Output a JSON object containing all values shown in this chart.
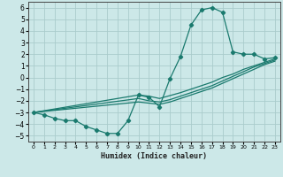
{
  "xlabel": "Humidex (Indice chaleur)",
  "ylabel": "",
  "bg_color": "#cce8e8",
  "grid_color": "#aacccc",
  "line_color": "#1a7a6e",
  "xlim": [
    -0.5,
    23.5
  ],
  "ylim": [
    -5.5,
    6.5
  ],
  "xticks": [
    0,
    1,
    2,
    3,
    4,
    5,
    6,
    7,
    8,
    9,
    10,
    11,
    12,
    13,
    14,
    15,
    16,
    17,
    18,
    19,
    20,
    21,
    22,
    23
  ],
  "yticks": [
    -5,
    -4,
    -3,
    -2,
    -1,
    0,
    1,
    2,
    3,
    4,
    5,
    6
  ],
  "line1_x": [
    0,
    1,
    2,
    3,
    4,
    5,
    6,
    7,
    8,
    9,
    10,
    11,
    12,
    13,
    14,
    15,
    16,
    17,
    18,
    19,
    20,
    21,
    22,
    23
  ],
  "line1_y": [
    -3.0,
    -3.2,
    -3.5,
    -3.7,
    -3.7,
    -4.2,
    -4.5,
    -4.8,
    -4.8,
    -3.7,
    -1.5,
    -1.7,
    -2.5,
    -0.1,
    1.8,
    4.5,
    5.8,
    6.0,
    5.6,
    2.2,
    2.0,
    2.0,
    1.6,
    1.7
  ],
  "line2_x": [
    0,
    10,
    11,
    12,
    13,
    14,
    15,
    16,
    17,
    18,
    19,
    20,
    21,
    22,
    23
  ],
  "line2_y": [
    -3.0,
    -1.5,
    -1.6,
    -1.8,
    -1.55,
    -1.3,
    -1.0,
    -0.7,
    -0.4,
    0.0,
    0.3,
    0.7,
    1.0,
    1.3,
    1.6
  ],
  "line3_x": [
    0,
    10,
    11,
    12,
    13,
    14,
    15,
    16,
    17,
    18,
    19,
    20,
    21,
    22,
    23
  ],
  "line3_y": [
    -3.0,
    -1.8,
    -2.0,
    -2.1,
    -1.9,
    -1.6,
    -1.3,
    -1.0,
    -0.7,
    -0.3,
    0.1,
    0.5,
    0.9,
    1.2,
    1.5
  ],
  "line4_x": [
    0,
    10,
    11,
    12,
    13,
    14,
    15,
    16,
    17,
    18,
    19,
    20,
    21,
    22,
    23
  ],
  "line4_y": [
    -3.0,
    -2.1,
    -2.2,
    -2.3,
    -2.1,
    -1.8,
    -1.5,
    -1.2,
    -0.9,
    -0.5,
    -0.1,
    0.3,
    0.7,
    1.1,
    1.4
  ]
}
